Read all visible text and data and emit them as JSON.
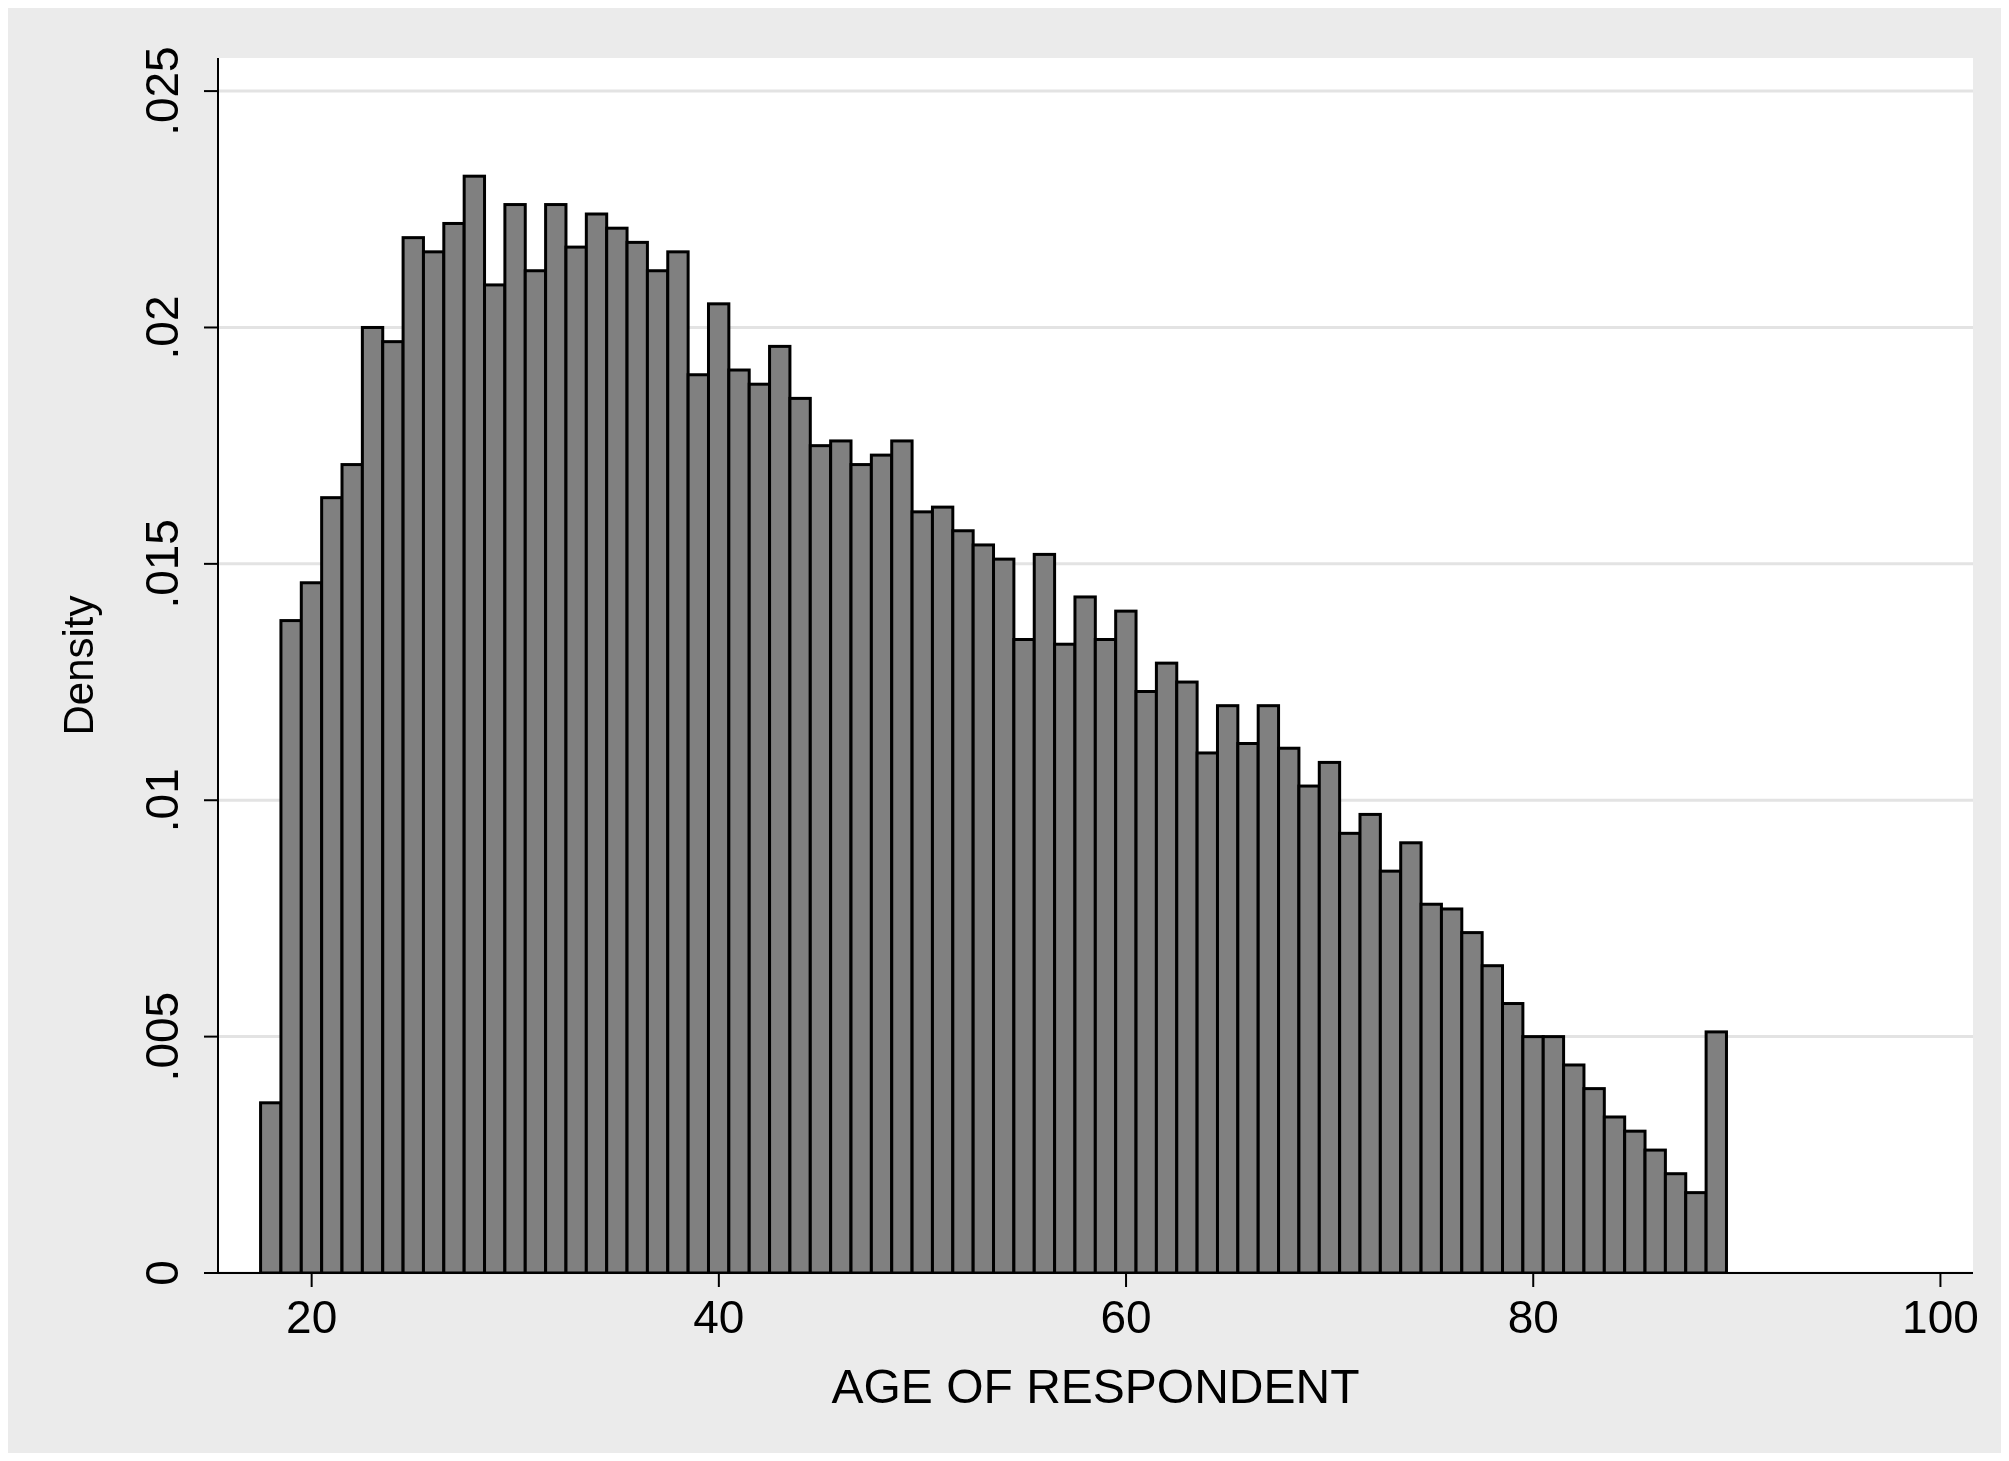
{
  "chart_data": {
    "type": "histogram",
    "xlabel": "AGE OF RESPONDENT",
    "ylabel": "Density",
    "bins": [
      17.5,
      18.5,
      19.5,
      20.5,
      21.5,
      22.5,
      23.5,
      24.5,
      25.5,
      26.5,
      27.5,
      28.5,
      29.5,
      30.5,
      31.5,
      32.5,
      33.5,
      34.5,
      35.5,
      36.5,
      37.5,
      38.5,
      39.5,
      40.5,
      41.5,
      42.5,
      43.5,
      44.5,
      45.5,
      46.5,
      47.5,
      48.5,
      49.5,
      50.5,
      51.5,
      52.5,
      53.5,
      54.5,
      55.5,
      56.5,
      57.5,
      58.5,
      59.5,
      60.5,
      61.5,
      62.5,
      63.5,
      64.5,
      65.5,
      66.5,
      67.5,
      68.5,
      69.5,
      70.5,
      71.5,
      72.5,
      73.5,
      74.5,
      75.5,
      76.5,
      77.5,
      78.5,
      79.5,
      80.5,
      81.5,
      82.5,
      83.5,
      84.5,
      85.5,
      86.5,
      87.5,
      88.5,
      89.5
    ],
    "values": [
      0.0036,
      0.0138,
      0.0146,
      0.0164,
      0.0171,
      0.02,
      0.0197,
      0.0219,
      0.0216,
      0.0222,
      0.0232,
      0.0209,
      0.0226,
      0.0212,
      0.0226,
      0.0217,
      0.0224,
      0.0221,
      0.0218,
      0.0212,
      0.0216,
      0.019,
      0.0205,
      0.0191,
      0.0188,
      0.0196,
      0.0185,
      0.0175,
      0.0176,
      0.0171,
      0.0173,
      0.0176,
      0.0161,
      0.0162,
      0.0157,
      0.0154,
      0.0151,
      0.0134,
      0.0152,
      0.0133,
      0.0143,
      0.0134,
      0.014,
      0.0123,
      0.0129,
      0.0125,
      0.011,
      0.012,
      0.0112,
      0.012,
      0.0111,
      0.0103,
      0.0108,
      0.0093,
      0.0097,
      0.0085,
      0.0091,
      0.0078,
      0.0077,
      0.0072,
      0.0065,
      0.0057,
      0.005,
      0.005,
      0.0044,
      0.0039,
      0.0033,
      0.003,
      0.0026,
      0.0021,
      0.0017,
      0.0051
    ],
    "color": "#808080",
    "xlim": [
      15.4,
      101.6
    ],
    "xticks": [
      20,
      40,
      60,
      80,
      100
    ],
    "ylim": [
      0,
      0.0257
    ],
    "yticks": [
      0,
      {
        "value": 0.005,
        "label": ".005"
      },
      {
        "value": 0.01,
        "label": ".01"
      },
      {
        "value": 0.015,
        "label": ".015"
      },
      {
        "value": 0.02,
        "label": ".02"
      },
      {
        "value": 0.025,
        "label": ".025"
      }
    ],
    "grid": "y"
  }
}
